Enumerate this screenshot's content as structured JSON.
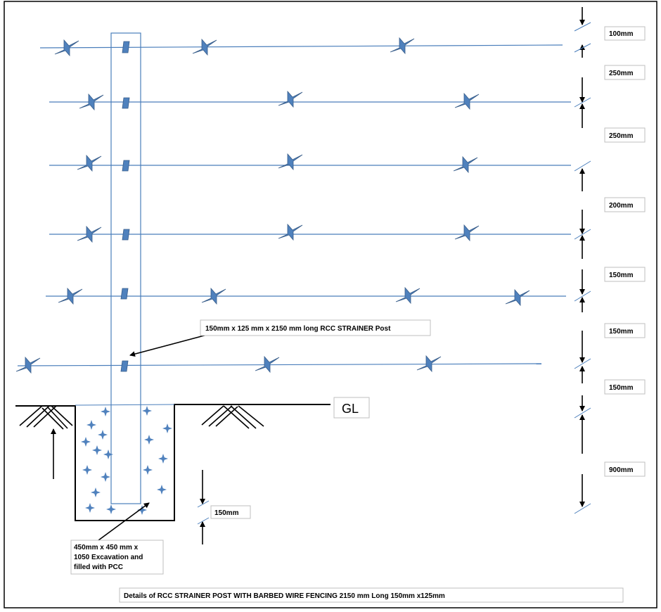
{
  "border_color": "#000000",
  "wire_color": "#4a7ebb",
  "barb_color": "#4f81bd",
  "dimensions": {
    "d1": "100mm",
    "d2": "250mm",
    "d3": "250mm",
    "d4": "200mm",
    "d5": "150mm",
    "d6": "150mm",
    "d7": "150mm",
    "d8": "900mm"
  },
  "bottom_clearance": "150mm",
  "post_label": "150mm x 125 mm x  2150 mm long  RCC  STRAINER Post",
  "excavation_label": [
    "450mm x 450 mm x",
    "1050 Excavation and",
    "filled with PCC"
  ],
  "ground_label": "GL",
  "caption": "Details of RCC  STRAINER POST WITH BARBED WIRE FENCING  2150 mm Long 150mm x125mm"
}
